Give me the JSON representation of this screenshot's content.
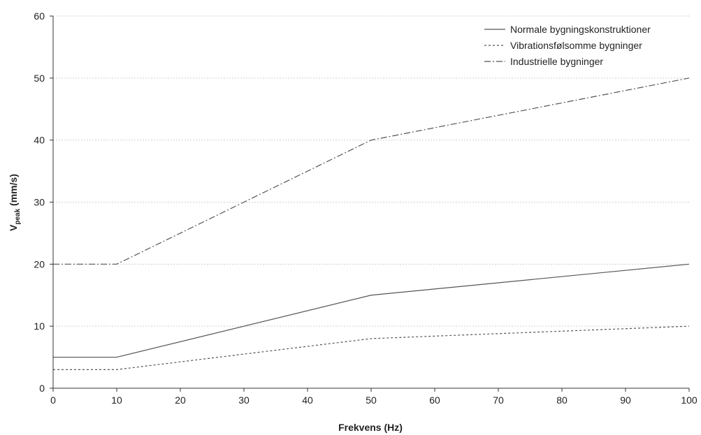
{
  "chart_data": {
    "type": "line",
    "title": "",
    "xlabel": "Frekvens (Hz)",
    "ylabel_main": "V",
    "ylabel_sub": "peak",
    "ylabel_unit": " (mm/s)",
    "xlim": [
      0,
      100
    ],
    "ylim": [
      0,
      60
    ],
    "x_ticks": [
      "0",
      "10",
      "20",
      "30",
      "40",
      "50",
      "60",
      "70",
      "80",
      "90",
      "100"
    ],
    "y_ticks": [
      "0",
      "10",
      "20",
      "30",
      "40",
      "50",
      "60"
    ],
    "grid": "horizontal",
    "legend_position": "top-right",
    "series": [
      {
        "name": "Normale bygningskonstruktioner",
        "line_style": "solid",
        "color": "#555555",
        "x": [
          0,
          10,
          50,
          100
        ],
        "values": [
          5,
          5,
          15,
          20
        ]
      },
      {
        "name": "Vibrationsfølsomme bygninger",
        "line_style": "dashed",
        "color": "#555555",
        "x": [
          0,
          10,
          50,
          100
        ],
        "values": [
          3,
          3,
          8,
          10
        ]
      },
      {
        "name": "Industrielle bygninger",
        "line_style": "dash-dot",
        "color": "#555555",
        "x": [
          0,
          10,
          50,
          100
        ],
        "values": [
          20,
          20,
          40,
          50
        ]
      }
    ]
  }
}
